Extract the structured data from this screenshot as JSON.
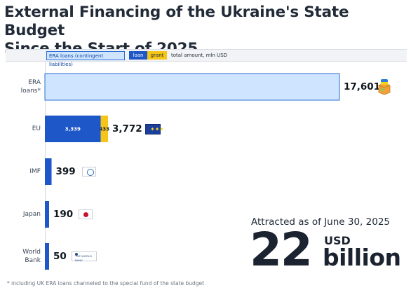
{
  "title_line1": "External Financing of the Ukraine's State Budget",
  "title_line2": "Since the Start of 2025",
  "legend": {
    "era": "ERA loans (contingent liabilities)",
    "loan": "loan",
    "grant": "grant",
    "unit": "total amount, mln USD"
  },
  "colors": {
    "era_fill": "#cfe5ff",
    "era_border": "#2a6fd6",
    "loan": "#1e57c8",
    "grant": "#f5c518"
  },
  "chart_data": {
    "type": "bar",
    "orientation": "horizontal",
    "stacked": true,
    "unit": "mln USD",
    "categories": [
      "ERA\nloans*",
      "EU",
      "IMF",
      "Japan",
      "World\nBank"
    ],
    "series": [
      {
        "name": "ERA loans (contingent liabilities)",
        "values": [
          17601,
          0,
          0,
          0,
          0
        ]
      },
      {
        "name": "loan",
        "values": [
          0,
          3339,
          399,
          190,
          50
        ]
      },
      {
        "name": "grant",
        "values": [
          0,
          433,
          0,
          0,
          0
        ]
      }
    ],
    "segment_labels": {
      "eu_loan": "3,339",
      "eu_grant": "433"
    },
    "totals": [
      "17,601",
      "3,772",
      "399",
      "190",
      "50"
    ],
    "xlim": [
      0,
      17601
    ]
  },
  "icons": {
    "era": "ukraine-gift-icon",
    "eu": "eu-flag-icon",
    "imf": "imf-logo-icon",
    "japan": "japan-flag-icon",
    "world_bank": "world-bank-logo-icon"
  },
  "world_bank_logo_text": "THE WORLD BANK",
  "summary": {
    "caption": "Attracted as of June 30, 2025",
    "number": "22",
    "unit": "USD",
    "scale": "billion"
  },
  "footnote": "* including UK ERA loans channeled to the special fund of the state budget"
}
